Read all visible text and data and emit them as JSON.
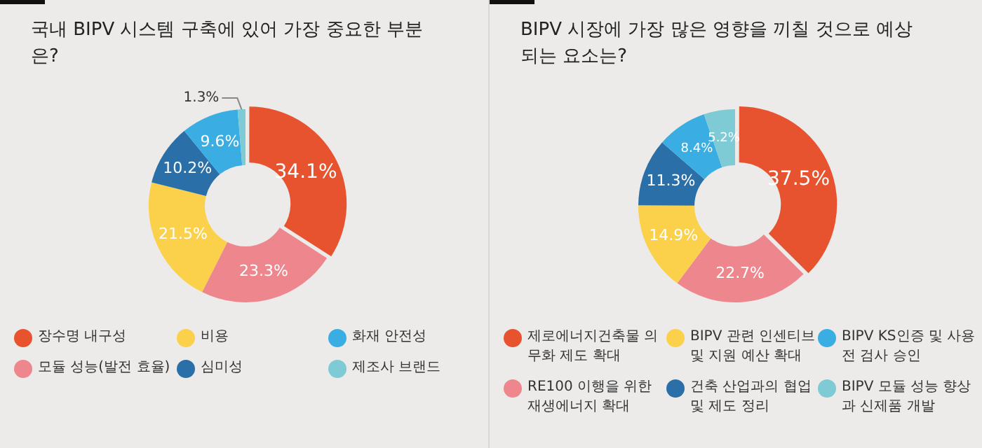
{
  "chart_data": [
    {
      "type": "donut",
      "title": "국내 BIPV 시스템 구축에 있어 가장 중요한 부분은?",
      "legend": "bottom",
      "categories": [
        "장수명 내구성",
        "모듈 성능(발전 효율)",
        "비용",
        "심미성",
        "화재 안전성",
        "제조사 브랜드"
      ],
      "values": [
        34.1,
        23.3,
        21.5,
        10.2,
        9.6,
        1.3
      ],
      "colors": [
        "#e8532f",
        "#ee878d",
        "#fbd14b",
        "#2a6fa8",
        "#3aaee3",
        "#7ecbd6"
      ],
      "value_labels": [
        "34.1%",
        "23.3%",
        "21.5%",
        "10.2%",
        "9.6%",
        "1.3%"
      ]
    },
    {
      "type": "donut",
      "title": "BIPV 시장에 가장 많은 영향을 끼칠 것으로 예상되는 요소는?",
      "legend": "bottom",
      "categories": [
        "제로에너지건축물 의무화 제도 확대",
        "RE100 이행을 위한 재생에너지 확대",
        "BIPV 관련 인센티브 및 지원 예산 확대",
        "건축 산업과의 협업 및 제도 정리",
        "BIPV KS인증 및 사용전 검사 승인",
        "BIPV 모듈 성능 향상과 신제품 개발"
      ],
      "values": [
        37.5,
        22.7,
        14.9,
        11.3,
        8.4,
        5.2
      ],
      "colors": [
        "#e8532f",
        "#ee878d",
        "#fbd14b",
        "#2a6fa8",
        "#3aaee3",
        "#7ecbd6"
      ],
      "value_labels": [
        "37.5%",
        "22.7%",
        "14.9%",
        "11.3%",
        "8.4%",
        "5.2%"
      ]
    }
  ]
}
